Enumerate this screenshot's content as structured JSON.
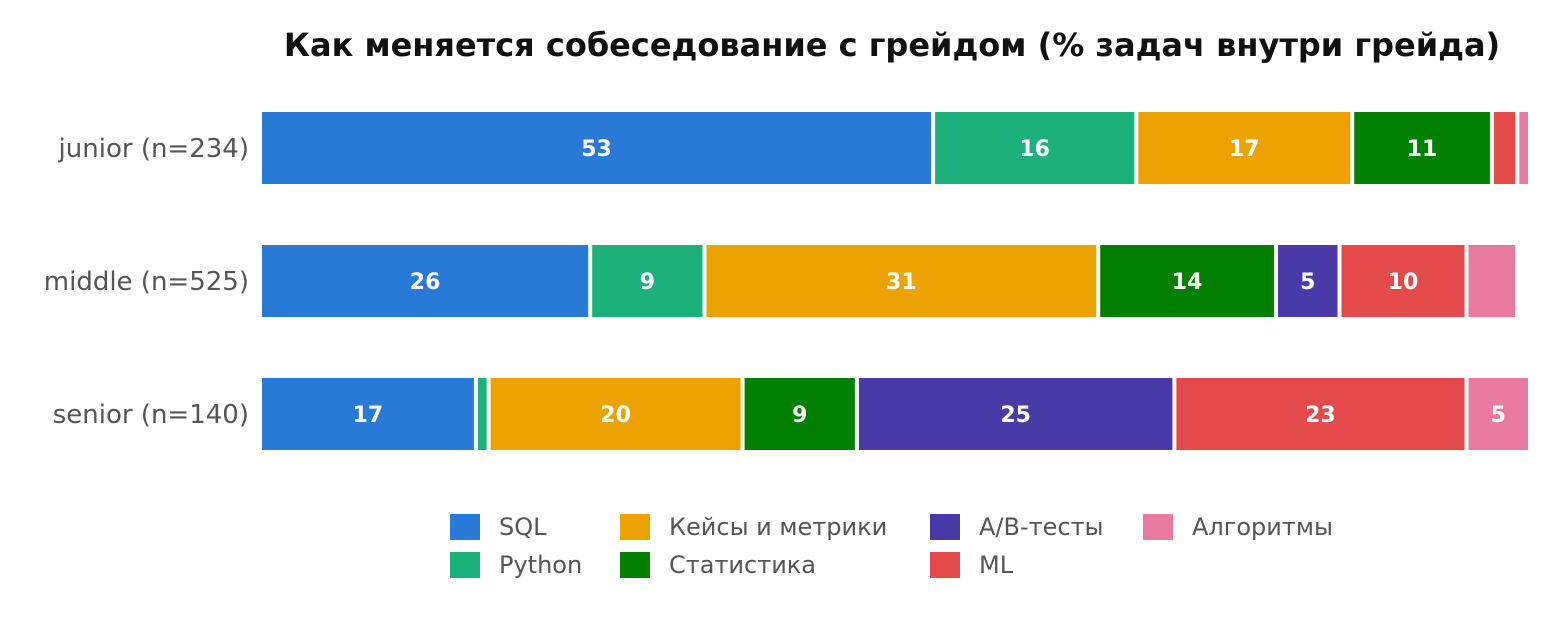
{
  "chart_data": {
    "type": "bar",
    "orientation": "horizontal",
    "stacked": true,
    "title": "Как меняется собеседование с грейдом (% задач внутри грейда)",
    "categories": [
      "junior (n=234)",
      "middle (n=525)",
      "senior (n=140)"
    ],
    "series": [
      {
        "name": "SQL",
        "color": "#2979d6",
        "values": [
          53,
          26,
          17
        ]
      },
      {
        "name": "Python",
        "color": "#1cb07a",
        "values": [
          16,
          9,
          1
        ]
      },
      {
        "name": "Кейсы и метрики",
        "color": "#eca200",
        "values": [
          17,
          31,
          20
        ]
      },
      {
        "name": "Статистика",
        "color": "#008000",
        "values": [
          11,
          14,
          9
        ]
      },
      {
        "name": "A/B-тесты",
        "color": "#4a3aa7",
        "values": [
          0,
          5,
          25
        ]
      },
      {
        "name": "ML",
        "color": "#e44a4a",
        "values": [
          2,
          10,
          23
        ]
      },
      {
        "name": "Алгоритмы",
        "color": "#e87aa0",
        "values": [
          1,
          4,
          5
        ]
      }
    ],
    "data_labels": [
      [
        "53",
        "16",
        "17",
        "11",
        "",
        "",
        ""
      ],
      [
        "26",
        "9",
        "31",
        "14",
        "5",
        "10",
        ""
      ],
      [
        "17",
        "",
        "20",
        "9",
        "25",
        "23",
        "5"
      ]
    ],
    "xlim": [
      0,
      100
    ],
    "grid": false,
    "legend_position": "bottom"
  }
}
